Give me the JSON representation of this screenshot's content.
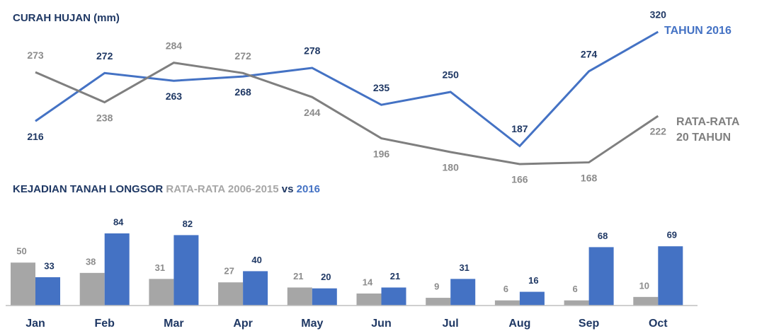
{
  "chart_data": [
    {
      "type": "line",
      "title": "CURAH HUJAN (mm)",
      "series": [
        {
          "name": "TAHUN 2016",
          "color": "#4472c4",
          "label_color": "#1f3864",
          "values": [
            216,
            272,
            263,
            268,
            278,
            235,
            250,
            187,
            274,
            320
          ]
        },
        {
          "name": "RATA-RATA 20 TAHUN",
          "color": "#7f7f7f",
          "label_color": "#8c8c8c",
          "values": [
            273,
            238,
            284,
            272,
            244,
            196,
            180,
            166,
            168,
            222
          ]
        }
      ]
    },
    {
      "type": "bar",
      "title": "KEJADIAN TANAH LONGSOR",
      "title_joiner": "vs",
      "categories": [
        "Jan",
        "Feb",
        "Mar",
        "Apr",
        "May",
        "Jun",
        "Jul",
        "Aug",
        "Sep",
        "Oct"
      ],
      "series": [
        {
          "name": "RATA-RATA 2006-2015",
          "color": "#a6a6a6",
          "label_color": "#8c8c8c",
          "values": [
            50,
            38,
            31,
            27,
            21,
            14,
            9,
            6,
            6,
            10
          ]
        },
        {
          "name": "2016",
          "color": "#4472c4",
          "label_color": "#1f3864",
          "values": [
            33,
            84,
            82,
            40,
            20,
            21,
            31,
            16,
            68,
            69
          ]
        }
      ]
    }
  ]
}
